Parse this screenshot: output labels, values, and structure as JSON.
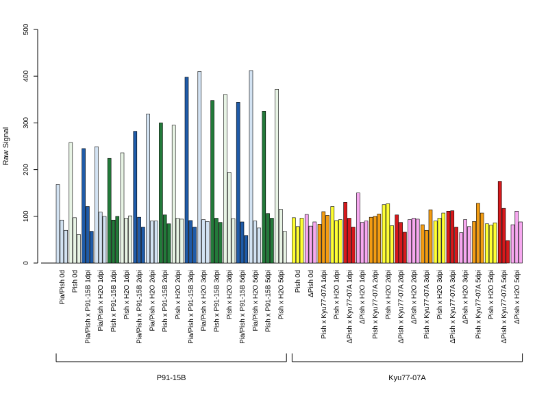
{
  "chart_data": {
    "type": "bar",
    "title": "",
    "xlabel": "",
    "ylabel": "Raw Signal",
    "ylim": [
      0,
      500
    ],
    "yticks": [
      0,
      100,
      200,
      300,
      400,
      500
    ],
    "grid": false,
    "legend": "none",
    "groups": [
      {
        "label": "P91-15B",
        "categories": [
          {
            "label": "Pia/Pish 0d",
            "color": "#D3E3F3",
            "values": [
              168,
              92,
              70
            ]
          },
          {
            "label": "Pish 0d",
            "color": "#E8F4E5",
            "values": [
              258,
              97,
              61
            ]
          },
          {
            "label": "Pia/Pish x P91-15B 1dpi",
            "color": "#1F5BA8",
            "values": [
              245,
              121,
              68
            ]
          },
          {
            "label": "Pia/Pish x H2O 1dpi",
            "color": "#D3E3F3",
            "values": [
              249,
              109,
              100
            ]
          },
          {
            "label": "Pish x P91-15B 1dpi",
            "color": "#237A3A",
            "values": [
              224,
              92,
              100
            ]
          },
          {
            "label": "Pish x H2O 1dpi",
            "color": "#E8F4E5",
            "values": [
              236,
              96,
              101
            ]
          },
          {
            "label": "Pia/Pish x P91-15B 2dpi",
            "color": "#1F5BA8",
            "values": [
              282,
              98,
              77
            ]
          },
          {
            "label": "Pia/Pish x H2O 2dpi",
            "color": "#D3E3F3",
            "values": [
              319,
              90,
              90
            ]
          },
          {
            "label": "Pish x P91-15B 2dpi",
            "color": "#237A3A",
            "values": [
              300,
              103,
              84
            ]
          },
          {
            "label": "Pish x H2O 2dpi",
            "color": "#E8F4E5",
            "values": [
              295,
              96,
              94
            ]
          },
          {
            "label": "Pia/Pish x P91-15B 3dpi",
            "color": "#1F5BA8",
            "values": [
              398,
              91,
              77
            ]
          },
          {
            "label": "Pia/Pish x H2O 3dpi",
            "color": "#D3E3F3",
            "values": [
              410,
              93,
              89
            ]
          },
          {
            "label": "Pish x P91-15B 3dpi",
            "color": "#237A3A",
            "values": [
              348,
              96,
              87
            ]
          },
          {
            "label": "Pish x H2O 3dpi",
            "color": "#E8F4E5",
            "values": [
              361,
              194,
              95
            ]
          },
          {
            "label": "Pia/Pish x P91-15B 5dpi",
            "color": "#1F5BA8",
            "values": [
              344,
              88,
              59
            ]
          },
          {
            "label": "Pia/Pish x H2O 5dpi",
            "color": "#D3E3F3",
            "values": [
              412,
              90,
              75
            ]
          },
          {
            "label": "Pish x P91-15B 5dpi",
            "color": "#237A3A",
            "values": [
              325,
              106,
              96
            ]
          },
          {
            "label": "Pish x H2O 5dpi",
            "color": "#E8F4E5",
            "values": [
              372,
              115,
              68
            ]
          }
        ]
      },
      {
        "label": "Kyu77-07A",
        "categories": [
          {
            "label": "Pish 0d",
            "color": "#FFFF33",
            "values": [
              97,
              78,
              96
            ]
          },
          {
            "label": "ΔPish 0d",
            "color": "#F7A8F0",
            "values": [
              104,
              79,
              88
            ]
          },
          {
            "label": "Pish x Kyu77-07A 1dpi",
            "color": "#F39C12",
            "values": [
              83,
              110,
              102
            ]
          },
          {
            "label": "Pish x H2O 1dpi",
            "color": "#FFFF33",
            "values": [
              121,
              91,
              93
            ]
          },
          {
            "label": "ΔPish x Kyu77-07A 1dpi",
            "color": "#D7191C",
            "values": [
              130,
              96,
              77
            ]
          },
          {
            "label": "ΔPish x H2O 1dpi",
            "color": "#F7A8F0",
            "values": [
              150,
              87,
              90
            ]
          },
          {
            "label": "Pish x Kyu77-07A 2dpi",
            "color": "#F39C12",
            "values": [
              98,
              100,
              105
            ]
          },
          {
            "label": "Pish x H2O 2dpi",
            "color": "#FFFF33",
            "values": [
              125,
              127,
              80
            ]
          },
          {
            "label": "ΔPish x Kyu77-07A 2dpi",
            "color": "#D7191C",
            "values": [
              103,
              87,
              66
            ]
          },
          {
            "label": "ΔPish x H2O 2dpi",
            "color": "#F7A8F0",
            "values": [
              93,
              96,
              94
            ]
          },
          {
            "label": "Pish x Kyu77-07A 3dpi",
            "color": "#F39C12",
            "values": [
              82,
              70,
              114
            ]
          },
          {
            "label": "Pish x H2O 3dpi",
            "color": "#FFFF33",
            "values": [
              90,
              96,
              107
            ]
          },
          {
            "label": "ΔPish x Kyu77-07A 3dpi",
            "color": "#D7191C",
            "values": [
              111,
              112,
              77
            ]
          },
          {
            "label": "ΔPish x H2O 3dpi",
            "color": "#F7A8F0",
            "values": [
              65,
              93,
              78
            ]
          },
          {
            "label": "Pish x Kyu77-07A 5dpi",
            "color": "#F39C12",
            "values": [
              89,
              128,
              107
            ]
          },
          {
            "label": "Pish x H2O 5dpi",
            "color": "#FFFF33",
            "values": [
              84,
              81,
              86
            ]
          },
          {
            "label": "ΔPish x Kyu77-07A 5dpi",
            "color": "#D7191C",
            "values": [
              175,
              117,
              48
            ]
          },
          {
            "label": "ΔPish x H2O 5dpi",
            "color": "#F7A8F0",
            "values": [
              82,
              111,
              88
            ]
          }
        ]
      }
    ]
  }
}
